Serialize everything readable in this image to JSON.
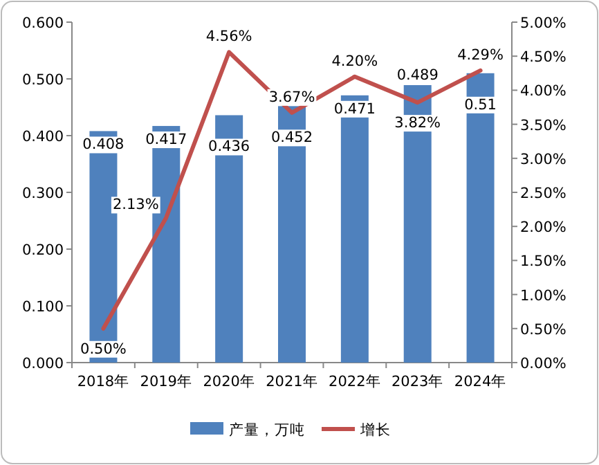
{
  "chart_data": {
    "type": "bar",
    "categories": [
      "2018年",
      "2019年",
      "2020年",
      "2021年",
      "2022年",
      "2023年",
      "2024年"
    ],
    "series": [
      {
        "name": "产量，万吨",
        "color": "#4f81bd",
        "values": [
          0.408,
          0.417,
          0.436,
          0.452,
          0.471,
          0.489,
          0.51
        ],
        "value_labels": [
          "0.408",
          "0.417",
          "0.436",
          "0.452",
          "0.471",
          "0.489",
          "0.51"
        ]
      },
      {
        "name": "增长",
        "type": "line",
        "axis": "y2",
        "color": "#c0504d",
        "values": [
          0.5,
          2.13,
          4.56,
          3.67,
          4.2,
          3.82,
          4.29
        ],
        "value_labels": [
          "0.50%",
          "2.13%",
          "4.56%",
          "3.67%",
          "4.20%",
          "3.82%",
          "4.29%"
        ]
      }
    ],
    "ylim": [
      0,
      0.6
    ],
    "yticks": [
      {
        "value": 0,
        "label": "0.000"
      },
      {
        "value": 0.1,
        "label": "0.100"
      },
      {
        "value": 0.2,
        "label": "0.200"
      },
      {
        "value": 0.3,
        "label": "0.300"
      },
      {
        "value": 0.4,
        "label": "0.400"
      },
      {
        "value": 0.5,
        "label": "0.500"
      },
      {
        "value": 0.6,
        "label": "0.600"
      }
    ],
    "y2lim": [
      0,
      5
    ],
    "y2ticks": [
      {
        "value": 0,
        "label": "0.00%"
      },
      {
        "value": 0.5,
        "label": "0.50%"
      },
      {
        "value": 1,
        "label": "1.00%"
      },
      {
        "value": 1.5,
        "label": "1.50%"
      },
      {
        "value": 2,
        "label": "2.00%"
      },
      {
        "value": 2.5,
        "label": "2.50%"
      },
      {
        "value": 3,
        "label": "3.00%"
      },
      {
        "value": 3.5,
        "label": "3.50%"
      },
      {
        "value": 4,
        "label": "4.00%"
      },
      {
        "value": 4.5,
        "label": "4.50%"
      },
      {
        "value": 5,
        "label": "5.00%"
      }
    ],
    "legend": "bottom"
  }
}
